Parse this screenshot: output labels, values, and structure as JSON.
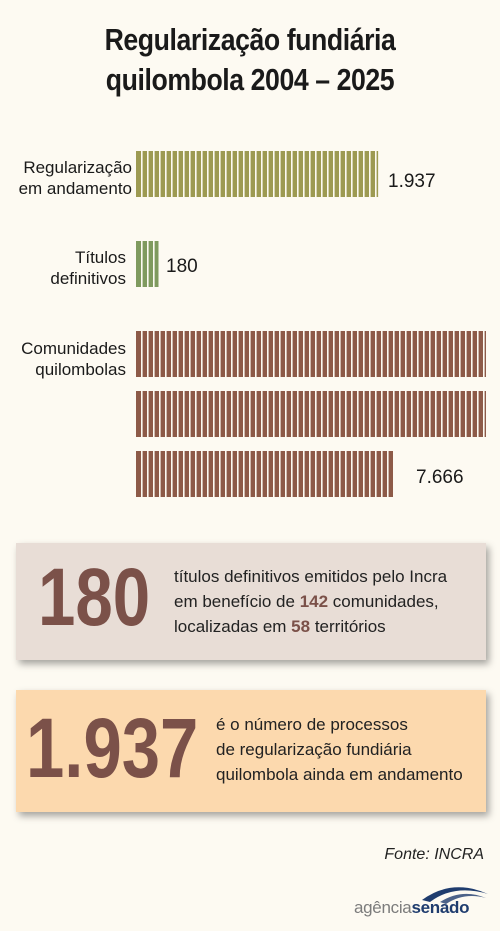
{
  "title_line1": "Regularização fundiária",
  "title_line2": "quilombola 2004 – 2025",
  "chart_data": {
    "type": "bar",
    "orientation": "horizontal",
    "categories": [
      "Regularização em andamento",
      "Títulos definitivos",
      "Comunidades quilombolas"
    ],
    "category_lines": [
      [
        "Regularização",
        "em andamento"
      ],
      [
        "Títulos",
        "definitivos"
      ],
      [
        "Comunidades",
        "quilombolas"
      ]
    ],
    "values": [
      1937,
      180,
      7666
    ],
    "value_labels": [
      "1.937",
      "180",
      "7.666"
    ],
    "colors": [
      "#9d9a52",
      "#7f9a5e",
      "#8d5a48"
    ],
    "max_per_row": 2800,
    "wrapped_rows": true
  },
  "card1": {
    "number": "180",
    "text_a": "títulos definitivos emitidos pelo Incra",
    "text_b": "em benefício de ",
    "hl1": "142",
    "text_c": " comunidades,",
    "text_d": "localizadas em ",
    "hl2": "58",
    "text_e": " territórios"
  },
  "card2": {
    "number": "1.937",
    "line1": "é o número de processos",
    "line2": "de regularização fundiária",
    "line3": "quilombola ainda em andamento"
  },
  "source": "Fonte: INCRA",
  "logo": {
    "part1": "agência",
    "part2": "senado"
  }
}
